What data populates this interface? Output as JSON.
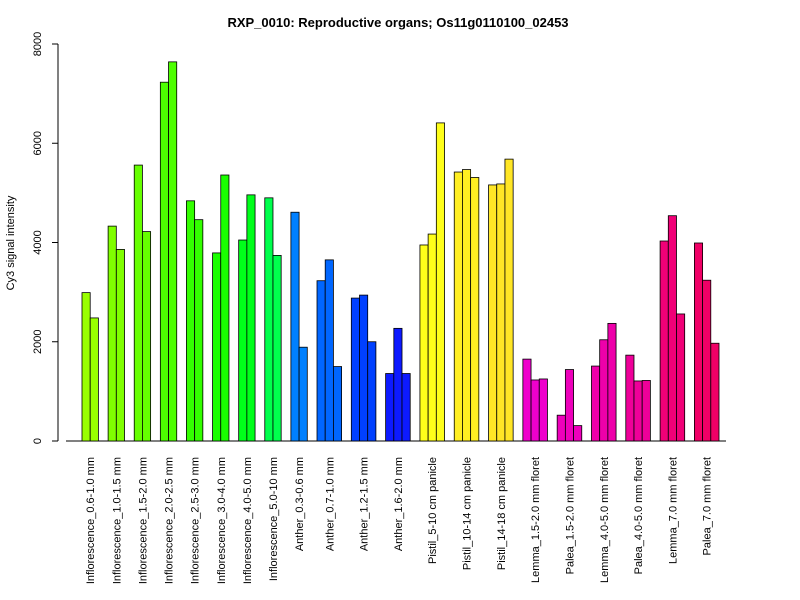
{
  "chart_data": {
    "type": "bar",
    "title": "RXP_0010: Reproductive organs; Os11g0110100_02453",
    "ylabel": "Cy3 signal intensity",
    "xlabel": "",
    "ylim": [
      0,
      8000
    ],
    "yticks": [
      0,
      2000,
      4000,
      6000,
      8000
    ],
    "grid": false,
    "legend": "none",
    "groups": [
      {
        "label": "Inflorescence_0.6-1.0 mm",
        "color": "#99ff00",
        "values": [
          2990,
          2480
        ]
      },
      {
        "label": "Inflorescence_1.0-1.5 mm",
        "color": "#80ff00",
        "values": [
          4330,
          3860
        ]
      },
      {
        "label": "Inflorescence_1.5-2.0 mm",
        "color": "#66ff00",
        "values": [
          5560,
          4220
        ]
      },
      {
        "label": "Inflorescence_2.0-2.5 mm",
        "color": "#4dff00",
        "values": [
          7230,
          7640
        ]
      },
      {
        "label": "Inflorescence_2.5-3.0 mm",
        "color": "#33ff00",
        "values": [
          4840,
          4460
        ]
      },
      {
        "label": "Inflorescence_3.0-4.0 mm",
        "color": "#1aff00",
        "values": [
          3790,
          5360
        ]
      },
      {
        "label": "Inflorescence_4.0-5.0 mm",
        "color": "#00ff1a",
        "values": [
          4050,
          4960
        ]
      },
      {
        "label": "Inflorescence_5.0-10 mm",
        "color": "#00ff4d",
        "values": [
          4900,
          3740
        ]
      },
      {
        "label": "Anther_0.3-0.6 mm",
        "color": "#0080ff",
        "values": [
          4610,
          1890
        ]
      },
      {
        "label": "Anther_0.7-1.0 mm",
        "color": "#0066ff",
        "values": [
          3230,
          3650,
          1500
        ]
      },
      {
        "label": "Anther_1.2-1.5 mm",
        "color": "#0040ff",
        "values": [
          2880,
          2940,
          2000
        ]
      },
      {
        "label": "Anther_1.6-2.0 mm",
        "color": "#0d1aff",
        "values": [
          1360,
          2270,
          1360
        ]
      },
      {
        "label": "Pistil_5-10 cm panicle",
        "color": "#ffff1a",
        "values": [
          3950,
          4170,
          6410
        ]
      },
      {
        "label": "Pistil_10-14 cm panicle",
        "color": "#ffee22",
        "values": [
          5420,
          5470,
          5310
        ]
      },
      {
        "label": "Pistil_14-18 cm panicle",
        "color": "#ffe626",
        "values": [
          5160,
          5180,
          5680
        ]
      },
      {
        "label": "Lemma_1.5-2.0 mm floret",
        "color": "#ee00cc",
        "values": [
          1650,
          1230,
          1250
        ]
      },
      {
        "label": "Palea_1.5-2.0 mm floret",
        "color": "#ee00bb",
        "values": [
          520,
          1440,
          310
        ]
      },
      {
        "label": "Lemma_4.0-5.0 mm floret",
        "color": "#ee00aa",
        "values": [
          1510,
          2040,
          2370
        ]
      },
      {
        "label": "Palea_4.0-5.0 mm floret",
        "color": "#ee0099",
        "values": [
          1730,
          1210,
          1220
        ]
      },
      {
        "label": "Lemma_7.0 mm floret",
        "color": "#f00077",
        "values": [
          4030,
          4540,
          2560
        ]
      },
      {
        "label": "Palea_7.0 mm floret",
        "color": "#f00066",
        "values": [
          3990,
          3240,
          1970
        ]
      }
    ]
  }
}
